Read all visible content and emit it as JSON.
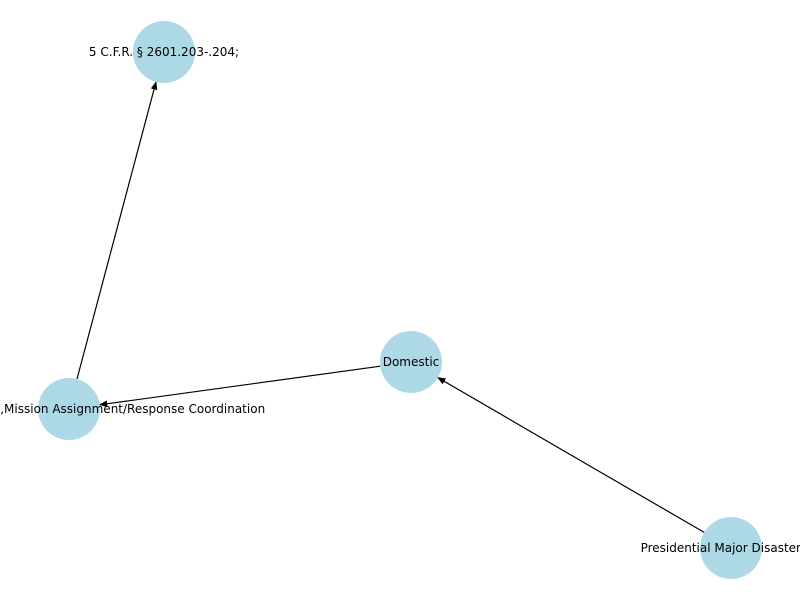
{
  "graph": {
    "node_color": "#add8e6",
    "edge_color": "#000000",
    "nodes": [
      {
        "id": "cfr",
        "label": "5 C.F.R. § 2601.203-.204;"
      },
      {
        "id": "domestic",
        "label": "Domestic"
      },
      {
        "id": "response",
        "label": "Response Leadership,Mission Assignment/Response Coordination"
      },
      {
        "id": "presidential",
        "label": "Presidential Major Disaster De"
      }
    ],
    "edges": [
      {
        "from": "presidential",
        "to": "domestic"
      },
      {
        "from": "domestic",
        "to": "response"
      },
      {
        "from": "response",
        "to": "cfr"
      }
    ]
  }
}
